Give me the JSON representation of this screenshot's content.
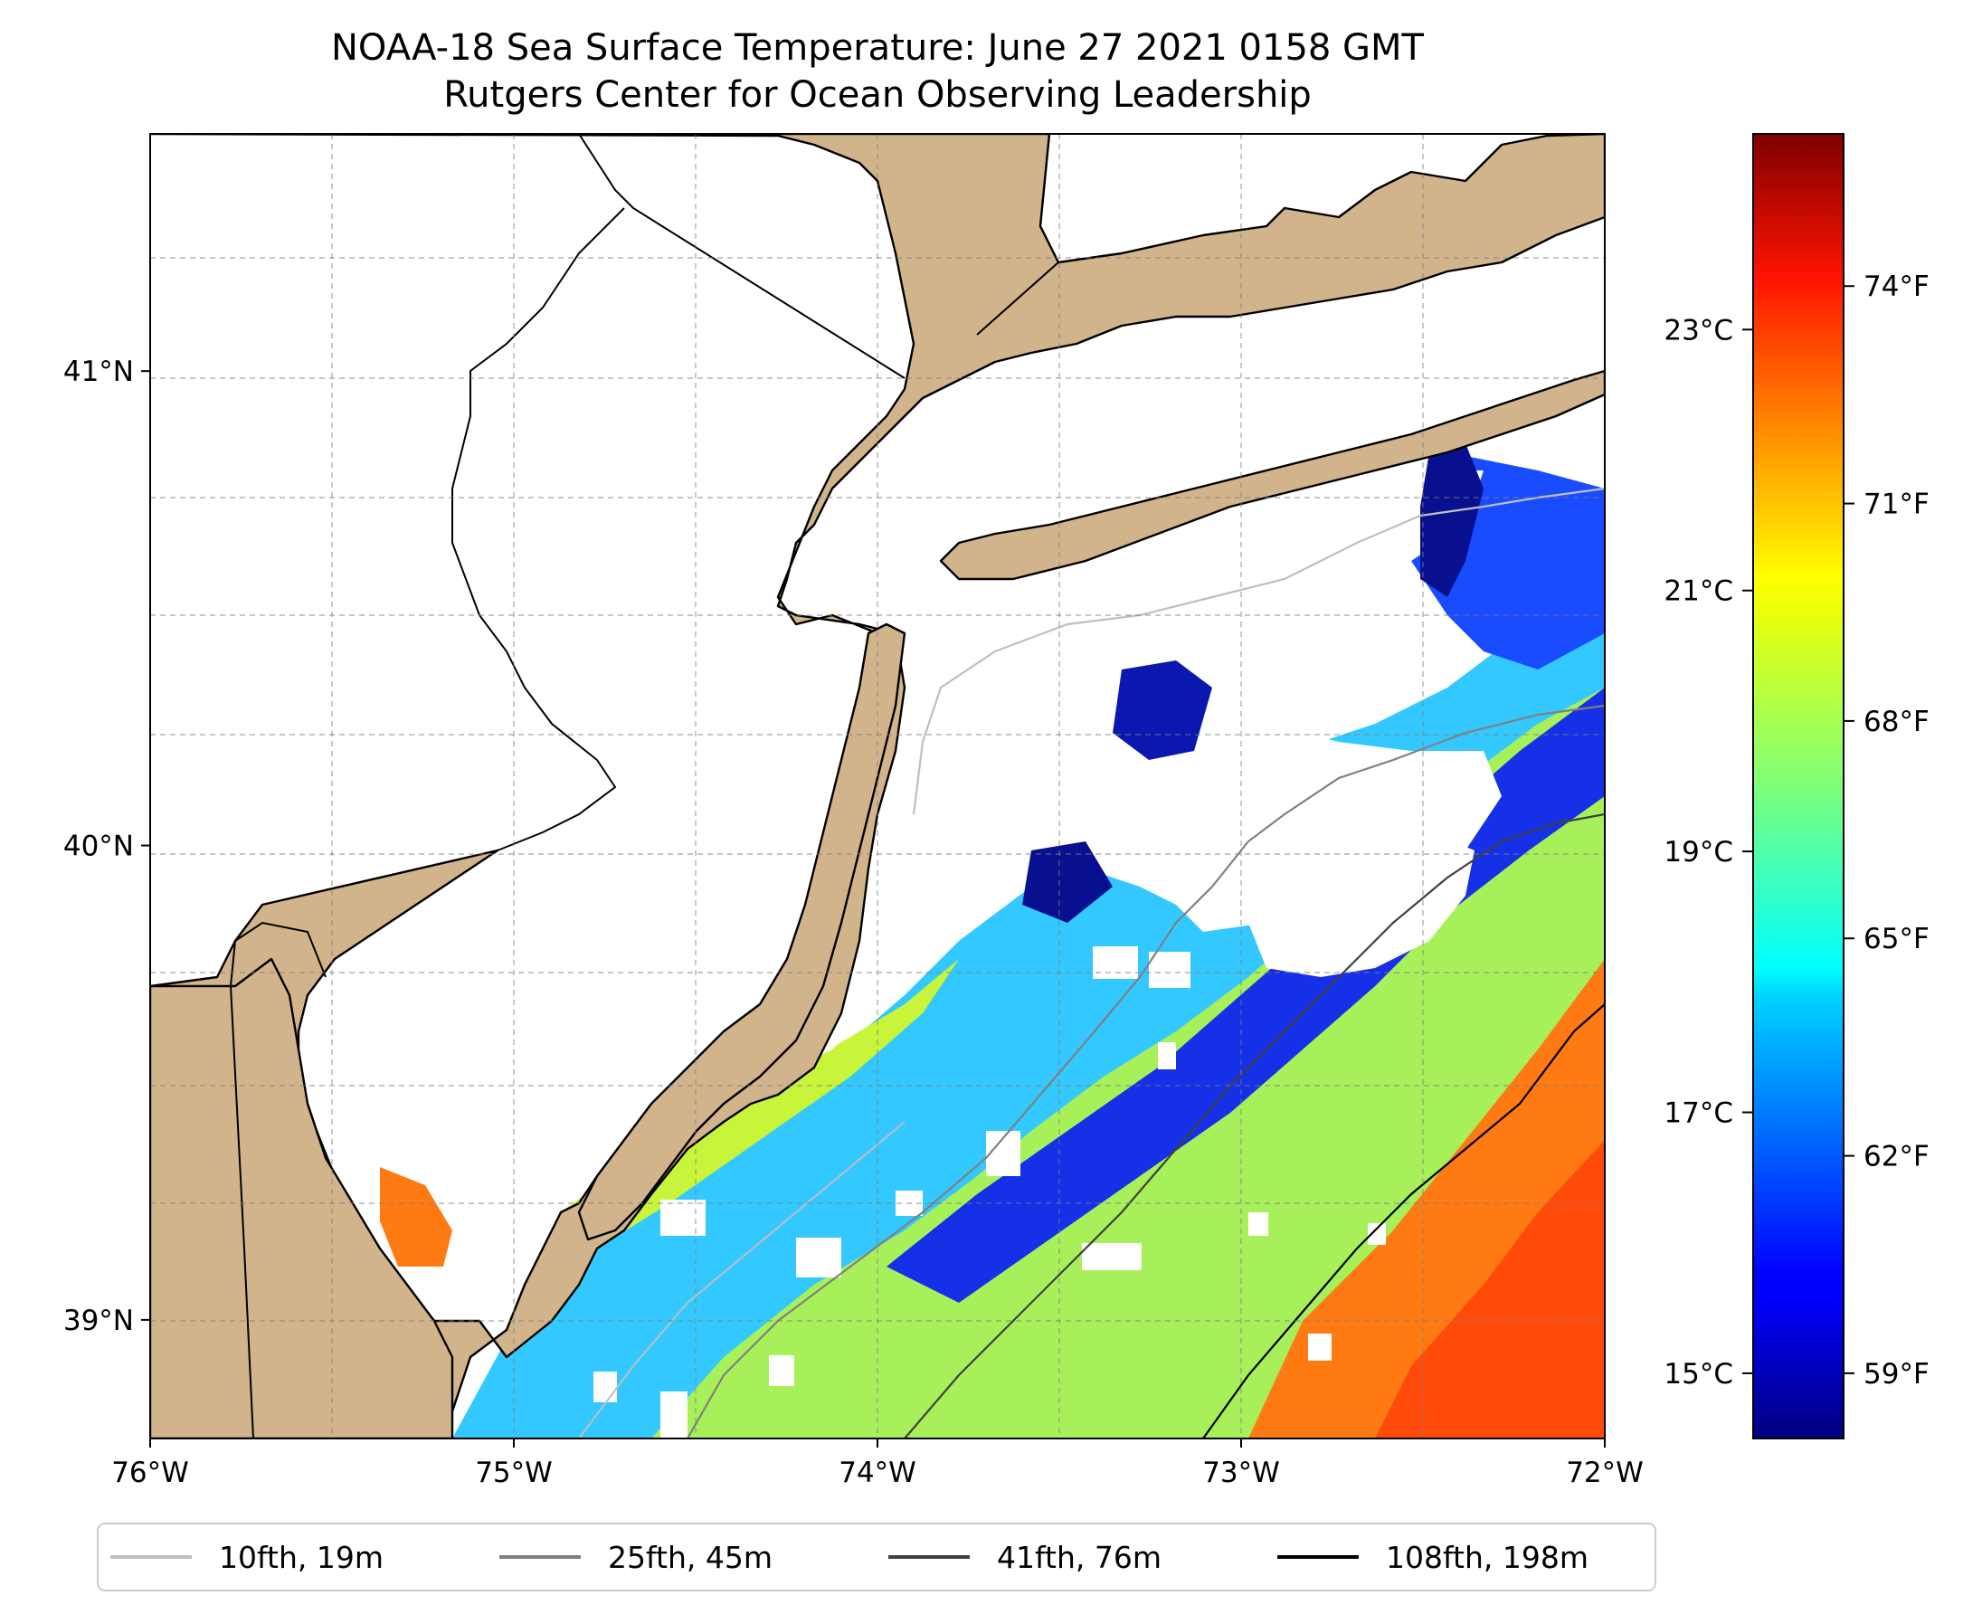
{
  "title": {
    "line1": "NOAA-18 Sea Surface Temperature: June 27 2021 0158 GMT",
    "line2": "Rutgers Center for Ocean Observing Leadership"
  },
  "colors": {
    "land": "#d2b48c",
    "nodata": "#ffffff",
    "coast": "#000000"
  },
  "map": {
    "lon_range": [
      -76,
      -72
    ],
    "lat_range": [
      38.75,
      41.5
    ],
    "lon_ticks": [
      {
        "value": -76,
        "label": "76°W"
      },
      {
        "value": -75,
        "label": "75°W"
      },
      {
        "value": -74,
        "label": "74°W"
      },
      {
        "value": -73,
        "label": "73°W"
      },
      {
        "value": -72,
        "label": "72°W"
      }
    ],
    "lat_ticks": [
      {
        "value": 39,
        "label": "39°N"
      },
      {
        "value": 40,
        "label": "40°N"
      },
      {
        "value": 41,
        "label": "41°N"
      }
    ]
  },
  "colorbar": {
    "cmap": "jet",
    "range_c": [
      14.5,
      24.5
    ],
    "celsius_ticks": [
      {
        "value": 15,
        "label": "15°C"
      },
      {
        "value": 17,
        "label": "17°C"
      },
      {
        "value": 19,
        "label": "19°C"
      },
      {
        "value": 21,
        "label": "21°C"
      },
      {
        "value": 23,
        "label": "23°C"
      }
    ],
    "fahrenheit_ticks": [
      {
        "value": 59,
        "label": "59°F"
      },
      {
        "value": 62,
        "label": "62°F"
      },
      {
        "value": 65,
        "label": "65°F"
      },
      {
        "value": 68,
        "label": "68°F"
      },
      {
        "value": 71,
        "label": "71°F"
      },
      {
        "value": 74,
        "label": "74°F"
      }
    ]
  },
  "legend": {
    "placement": "below",
    "items": [
      {
        "label": "10fth, 19m",
        "color": "#bfbfbf"
      },
      {
        "label": "25fth, 45m",
        "color": "#808080"
      },
      {
        "label": "41fth, 76m",
        "color": "#404040"
      },
      {
        "label": "108fth, 198m",
        "color": "#000000"
      }
    ]
  }
}
